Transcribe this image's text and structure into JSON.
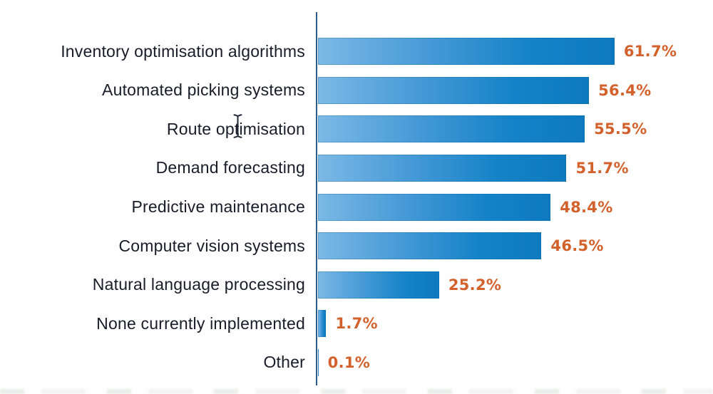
{
  "chart_data": {
    "type": "bar",
    "orientation": "horizontal",
    "title": "",
    "xlabel": "",
    "ylabel": "",
    "categories": [
      "Inventory optimisation algorithms",
      "Automated picking systems",
      "Route optimisation",
      "Demand forecasting",
      "Predictive maintenance",
      "Computer vision systems",
      "Natural language processing",
      "None currently implemented",
      "Other"
    ],
    "values": [
      61.7,
      56.4,
      55.5,
      51.7,
      48.4,
      46.5,
      25.2,
      1.7,
      0.1
    ],
    "value_labels": [
      "61.7%",
      "56.4%",
      "55.5%",
      "51.7%",
      "48.4%",
      "46.5%",
      "25.2%",
      "1.7%",
      "0.1%"
    ],
    "xlim": [
      0,
      65
    ],
    "grid": false,
    "legend": "none",
    "colors": {
      "bar_gradient_start": "#7cb9e6",
      "bar_gradient_end": "#0d7ac0",
      "value_label": "#d2612b",
      "category_label": "#1b1b29",
      "axis_line": "#2e5c8a"
    }
  },
  "cursor": {
    "icon": "text-ibeam-cursor"
  }
}
